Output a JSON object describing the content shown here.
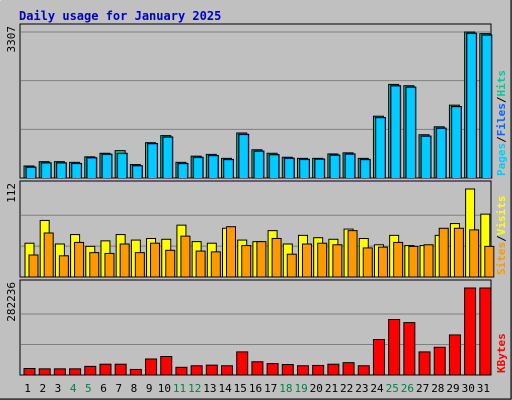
{
  "title": "Daily usage for January 2025",
  "colors": {
    "background": "#c0c0c0",
    "title": "#0000cc",
    "hits": "#00cc99",
    "files": "#0066ff",
    "pages": "#00ccff",
    "visits": "#ffff00",
    "sites": "#ff9900",
    "kbytes": "#ff0000",
    "weekend_day": "#00804d",
    "weekday_day": "#000000"
  },
  "chart_data": [
    {
      "type": "bar",
      "name": "hits-files-pages",
      "side_labels": [
        {
          "text": "Pages",
          "color": "#00ccff"
        },
        {
          "text": "/",
          "color": "#000000"
        },
        {
          "text": "Files",
          "color": "#0066ff"
        },
        {
          "text": "/",
          "color": "#000000"
        },
        {
          "text": "Hits",
          "color": "#00cc99"
        }
      ],
      "ymax_label": "3307",
      "ylim": [
        0,
        3307
      ],
      "series": [
        {
          "name": "Hits",
          "values": [
            272,
            370,
            370,
            355,
            480,
            560,
            620,
            305,
            800,
            960,
            355,
            495,
            535,
            445,
            1020,
            640,
            560,
            470,
            445,
            445,
            545,
            570,
            445,
            1400,
            2120,
            2090,
            980,
            1160,
            1650,
            3307,
            3270
          ]
        },
        {
          "name": "Files",
          "values": [
            248,
            345,
            345,
            330,
            460,
            540,
            560,
            280,
            780,
            930,
            330,
            470,
            510,
            420,
            990,
            610,
            530,
            450,
            425,
            430,
            520,
            545,
            420,
            1370,
            2090,
            2060,
            950,
            1130,
            1620,
            3280,
            3240
          ]
        }
      ],
      "categories": [
        "1",
        "2",
        "3",
        "4",
        "5",
        "6",
        "7",
        "8",
        "9",
        "10",
        "11",
        "12",
        "13",
        "14",
        "15",
        "16",
        "17",
        "18",
        "19",
        "20",
        "21",
        "22",
        "23",
        "24",
        "25",
        "26",
        "27",
        "28",
        "29",
        "30",
        "31"
      ]
    },
    {
      "type": "bar",
      "name": "visits-sites",
      "side_labels": [
        {
          "text": "Sites",
          "color": "#ff9900"
        },
        {
          "text": "/",
          "color": "#000000"
        },
        {
          "text": "Visits",
          "color": "#ffff00"
        }
      ],
      "ymax_label": "112",
      "ylim": [
        0,
        112
      ],
      "series": [
        {
          "name": "Visits",
          "values": [
            43,
            72,
            42,
            54,
            39,
            46,
            54,
            47,
            49,
            48,
            66,
            45,
            43,
            62,
            47,
            45,
            59,
            42,
            53,
            50,
            48,
            61,
            49,
            41,
            53,
            40,
            40,
            53,
            68,
            112,
            80
          ]
        },
        {
          "name": "Sites",
          "values": [
            28,
            56,
            27,
            44,
            31,
            30,
            42,
            31,
            43,
            34,
            52,
            33,
            32,
            64,
            40,
            45,
            49,
            29,
            42,
            43,
            41,
            59,
            37,
            38,
            44,
            39,
            41,
            62,
            62,
            60,
            39
          ]
        }
      ]
    },
    {
      "type": "bar",
      "name": "kbytes",
      "side_labels": [
        {
          "text": "KBytes",
          "color": "#ff0000"
        }
      ],
      "ymax_label": "282236",
      "ylim": [
        0,
        282236
      ],
      "series": [
        {
          "name": "KBytes",
          "values": [
            21000,
            20000,
            20000,
            20000,
            28000,
            35000,
            35000,
            18000,
            52000,
            60000,
            25000,
            30000,
            32000,
            30000,
            75000,
            43000,
            37000,
            34000,
            30000,
            31000,
            35000,
            40000,
            30000,
            115000,
            180000,
            170000,
            75000,
            90000,
            130000,
            282236,
            282236
          ]
        }
      ]
    }
  ],
  "x_axis": {
    "days": [
      "1",
      "2",
      "3",
      "4",
      "5",
      "6",
      "7",
      "8",
      "9",
      "10",
      "11",
      "12",
      "13",
      "14",
      "15",
      "16",
      "17",
      "18",
      "19",
      "20",
      "21",
      "22",
      "23",
      "24",
      "25",
      "26",
      "27",
      "28",
      "29",
      "30",
      "31"
    ],
    "weekend_days": [
      "4",
      "5",
      "11",
      "12",
      "18",
      "19",
      "25",
      "26"
    ]
  }
}
